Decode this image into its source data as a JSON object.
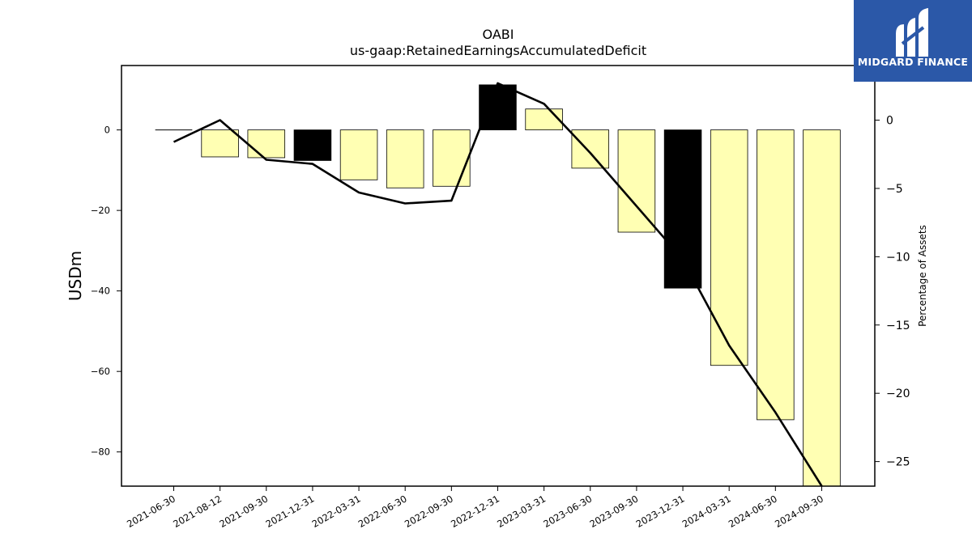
{
  "chart_data": {
    "type": "bar",
    "title": "OABI",
    "subtitle": "us-gaap:RetainedEarningsAccumulatedDeficit",
    "ylabel": "USDm",
    "y2label": "Percentage of Assets",
    "categories": [
      "2021-06-30",
      "2021-08-12",
      "2021-09-30",
      "2021-12-31",
      "2022-03-31",
      "2022-06-30",
      "2022-09-30",
      "2022-12-31",
      "2023-03-31",
      "2023-06-30",
      "2023-09-30",
      "2023-12-31",
      "2024-03-31",
      "2024-06-30",
      "2024-09-30"
    ],
    "series": [
      {
        "type": "bar",
        "axis": "left",
        "values": [
          0,
          -6.7,
          -6.9,
          -7.6,
          -12.4,
          -14.4,
          -14.0,
          11.2,
          5.2,
          -9.5,
          -25.4,
          -39.3,
          -58.5,
          -72.0,
          -88.5
        ],
        "colors": [
          "#000000",
          "#ffffb3",
          "#ffffb3",
          "#000000",
          "#ffffb3",
          "#ffffb3",
          "#ffffb3",
          "#000000",
          "#ffffb3",
          "#ffffb3",
          "#ffffb3",
          "#000000",
          "#ffffb3",
          "#ffffb3",
          "#ffffb3"
        ]
      },
      {
        "type": "line",
        "axis": "right",
        "values": [
          -1.6,
          0.0,
          -2.9,
          -3.2,
          -5.3,
          -6.1,
          -5.9,
          2.7,
          1.2,
          -2.4,
          -6.3,
          -10.2,
          -16.5,
          -21.4,
          -26.8
        ]
      }
    ],
    "ylim": [
      -88.5,
      16.0
    ],
    "yticks": [
      0,
      -20,
      -40,
      -60,
      -80
    ],
    "y2lim": [
      -26.8,
      4.0
    ],
    "y2ticks": [
      0,
      -5,
      -10,
      -15,
      -20,
      -25
    ],
    "grid": false,
    "colors": {
      "bar_positive": "#000000",
      "bar_negative": "#ffffb3",
      "line": "#000000"
    }
  },
  "logo": {
    "text": "MIDGARD FINANCE",
    "color": "#2b58a8"
  }
}
